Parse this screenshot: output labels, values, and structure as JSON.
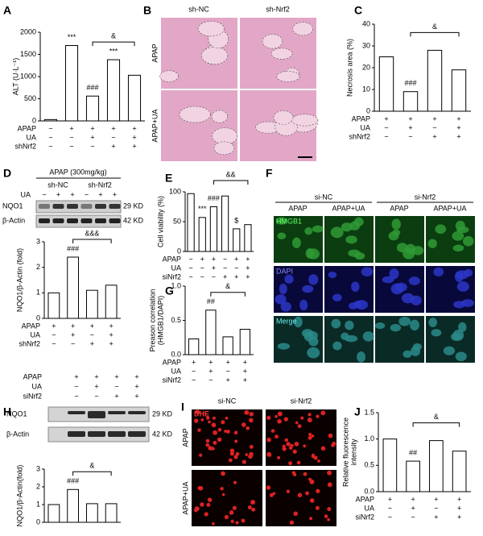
{
  "chart_data": [
    {
      "type": "bar",
      "panel": "A",
      "ylabel": [
        "ALT (U·L⁻¹)"
      ],
      "values": [
        30,
        1700,
        560,
        1380,
        1030
      ],
      "value_labels": [
        null,
        "***",
        "###",
        "***",
        null
      ],
      "comparison": {
        "label": "&",
        "between": [
          2,
          4
        ]
      },
      "ylim": [
        0,
        2000
      ],
      "yticks": [
        0,
        500,
        1000,
        1500,
        2000
      ],
      "color": "#ffffff",
      "conditions": [
        {
          "name": "APAP",
          "marks": [
            "−",
            "+",
            "+",
            "+",
            "+"
          ]
        },
        {
          "name": "UA",
          "marks": [
            "−",
            "−",
            "+",
            "−",
            "+"
          ]
        },
        {
          "name": "shNrf2",
          "marks": [
            "−",
            "−",
            "−",
            "+",
            "+"
          ]
        }
      ]
    },
    {
      "type": "bar",
      "panel": "C",
      "ylabel": [
        "Necrosis area (%)"
      ],
      "values": [
        25,
        9,
        28,
        19
      ],
      "value_labels": [
        null,
        "###",
        null,
        null
      ],
      "comparison": {
        "label": "&",
        "between": [
          1,
          3
        ]
      },
      "ylim": [
        0,
        40
      ],
      "yticks": [
        0,
        10,
        20,
        30,
        40
      ],
      "color": "#ffffff",
      "conditions": [
        {
          "name": "APAP",
          "marks": [
            "+",
            "+",
            "+",
            "+"
          ]
        },
        {
          "name": "UA",
          "marks": [
            "−",
            "+",
            "−",
            "+"
          ]
        },
        {
          "name": "shNrf2",
          "marks": [
            "−",
            "−",
            "+",
            "+"
          ]
        }
      ]
    },
    {
      "type": "bar",
      "ylabel": [
        "NQO1/β-Actin (fold)"
      ],
      "values": [
        1.0,
        2.4,
        1.1,
        1.3
      ],
      "value_labels": [
        null,
        "###",
        null,
        null
      ],
      "comparison": {
        "label": "&&&",
        "between": [
          1,
          3
        ]
      },
      "ylim": [
        0,
        3
      ],
      "yticks": [
        0,
        1,
        2,
        3
      ],
      "color": "#ffffff",
      "conditions": [
        {
          "name": "APAP",
          "marks": [
            "+",
            "+",
            "+",
            "+"
          ]
        },
        {
          "name": "UA",
          "marks": [
            "−",
            "+",
            "−",
            "+"
          ]
        },
        {
          "name": "shNrf2",
          "marks": [
            "−",
            "−",
            "+",
            "+"
          ]
        }
      ]
    },
    {
      "type": "bar",
      "panel": "E",
      "ylabel": [
        "Cell viability (%)"
      ],
      "values": [
        97,
        57,
        75,
        93,
        38,
        45
      ],
      "value_labels": [
        null,
        "***",
        "###",
        null,
        "$",
        null
      ],
      "comparison": {
        "label": "&&",
        "between": [
          2,
          5
        ]
      },
      "ylim": [
        0,
        100
      ],
      "yticks": [
        0,
        50,
        100
      ],
      "color": "#ffffff",
      "conditions": [
        {
          "name": "APAP",
          "marks": [
            "−",
            "+",
            "+",
            "−",
            "+",
            "+"
          ]
        },
        {
          "name": "UA",
          "marks": [
            "−",
            "−",
            "+",
            "−",
            "−",
            "+"
          ]
        },
        {
          "name": "siNrf2",
          "marks": [
            "−",
            "−",
            "−",
            "+",
            "+",
            "+"
          ]
        }
      ]
    },
    {
      "type": "bar",
      "panel": "G",
      "ylabel": [
        "Preason correlation",
        "(HMGB1/DAPI)"
      ],
      "values": [
        0.23,
        0.65,
        0.26,
        0.37
      ],
      "value_labels": [
        null,
        "##",
        null,
        null
      ],
      "comparison": {
        "label": "&",
        "between": [
          1,
          3
        ]
      },
      "ylim": [
        0,
        1
      ],
      "yticks": [
        {
          "value": 0,
          "label": "0.0"
        },
        0.5,
        {
          "value": 1,
          "label": "1.0"
        }
      ],
      "color": "#ffffff",
      "conditions": [
        {
          "name": "APAP",
          "marks": [
            "+",
            "+",
            "+",
            "+"
          ]
        },
        {
          "name": "UA",
          "marks": [
            "−",
            "+",
            "−",
            "+"
          ]
        },
        {
          "name": "siNrf2",
          "marks": [
            "−",
            "−",
            "+",
            "+"
          ]
        }
      ]
    },
    {
      "type": "bar",
      "ylabel": [
        "NQO1/β-Actin(fold)"
      ],
      "values": [
        1.0,
        1.85,
        1.05,
        1.05
      ],
      "value_labels": [
        null,
        "###",
        null,
        null
      ],
      "comparison": {
        "label": "&",
        "between": [
          1,
          3
        ]
      },
      "ylim": [
        0,
        3
      ],
      "yticks": [
        0,
        1,
        2,
        3
      ],
      "color": "#ffffff"
    },
    {
      "type": "bar",
      "panel": "J",
      "ylabel": [
        "Relative fluorescence",
        "intensity"
      ],
      "values": [
        1.0,
        0.58,
        0.97,
        0.77
      ],
      "value_labels": [
        null,
        "##",
        null,
        null
      ],
      "comparison": {
        "label": "&",
        "between": [
          1,
          3
        ]
      },
      "ylim": [
        0,
        1.5
      ],
      "yticks": [
        {
          "value": 0,
          "label": "0.0"
        },
        0.5,
        {
          "value": 1,
          "label": "1.0"
        },
        1.5
      ],
      "color": "#ffffff",
      "conditions": [
        {
          "name": "APAP",
          "marks": [
            "+",
            "+",
            "+",
            "+"
          ]
        },
        {
          "name": "UA",
          "marks": [
            "−",
            "+",
            "−",
            "+"
          ]
        },
        {
          "name": "siNrf2",
          "marks": [
            "−",
            "−",
            "+",
            "+"
          ]
        }
      ]
    }
  ],
  "panel_B": {
    "label": "B",
    "columns": [
      "sh-NC",
      "sh-Nrf2"
    ],
    "rows": [
      "APAP",
      "APAP+UA"
    ]
  },
  "panel_D": {
    "label": "D",
    "treatment": "APAP (300mg/kg)",
    "groups": [
      "sh-NC",
      "sh-Nrf2"
    ],
    "ua_row": {
      "name": "UA",
      "marks": [
        "−",
        "+",
        "+",
        "−",
        "+",
        "+"
      ]
    },
    "bands": [
      {
        "name": "NQO1",
        "size": "29 KD"
      },
      {
        "name": "β-Actin",
        "size": "42 KD"
      }
    ]
  },
  "panel_F": {
    "label": "F",
    "groups": [
      "si-NC",
      "si-Nrf2"
    ],
    "columns": [
      "APAP",
      "APAP+UA",
      "APAP",
      "APAP+UA"
    ],
    "rows": [
      "HMGB1",
      "DAPI",
      "Merge"
    ]
  },
  "panel_H": {
    "label": "H",
    "conditions": [
      {
        "name": "APAP",
        "marks": [
          "+",
          "+",
          "+",
          "+"
        ]
      },
      {
        "name": "UA",
        "marks": [
          "−",
          "+",
          "−",
          "+"
        ]
      },
      {
        "name": "siNrf2",
        "marks": [
          "−",
          "−",
          "+",
          "+"
        ]
      }
    ],
    "bands": [
      {
        "name": "NQO1",
        "size": "29 KD"
      },
      {
        "name": "β-Actin",
        "size": "42 KD"
      }
    ]
  },
  "panel_I": {
    "label": "I",
    "stain": "DHE",
    "columns": [
      "si-NC",
      "si-Nrf2"
    ],
    "rows": [
      "APAP",
      "APAP+UA"
    ]
  }
}
